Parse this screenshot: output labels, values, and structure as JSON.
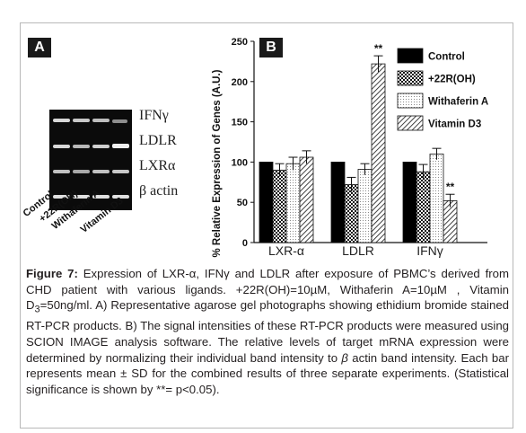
{
  "panel_a": {
    "label": "A",
    "genes": [
      "IFNγ",
      "LDLR",
      "LXRα",
      "β actin"
    ],
    "lanes": [
      "Control",
      "+22R(OH)",
      "Withaferin A",
      "Vitamin D3"
    ]
  },
  "panel_b": {
    "label": "B"
  },
  "colors": {
    "control": "#000000",
    "frame": "#b8b8b8",
    "panel_label_bg": "#1a1a1a"
  },
  "chart_data": {
    "type": "bar",
    "categories": [
      "LXR-α",
      "LDLR",
      "IFNγ"
    ],
    "ylabel": "% Relative Expression of Genes (A.U.)",
    "xlabel": "",
    "ylim": [
      0,
      250
    ],
    "yticks": [
      0,
      50,
      100,
      150,
      200,
      250
    ],
    "legend_position": "top-right",
    "series": [
      {
        "name": "Control",
        "pattern": "solid",
        "values": [
          100,
          100,
          100
        ],
        "errors": [
          0,
          0,
          0
        ]
      },
      {
        "name": "+22R(OH)",
        "pattern": "checker",
        "values": [
          90,
          72,
          88
        ],
        "errors": [
          8,
          9,
          9
        ]
      },
      {
        "name": "Withaferin A",
        "pattern": "dots",
        "values": [
          98,
          91,
          110
        ],
        "errors": [
          8,
          7,
          7
        ]
      },
      {
        "name": "Vitamin D3",
        "pattern": "diagonal",
        "values": [
          106,
          222,
          52
        ],
        "errors": [
          8,
          10,
          8
        ]
      }
    ],
    "annotations": [
      {
        "category": "LDLR",
        "series": "Vitamin D3",
        "text": "**"
      },
      {
        "category": "IFNγ",
        "series": "Vitamin D3",
        "text": "**"
      }
    ]
  },
  "caption": {
    "label": "Figure 7:",
    "line1": " Expression of LXR-α, IFNγ and LDLR after exposure of PBMC’s derived from CHD patient with various ligands. +22R(OH)=10µM, Withaferin A=10µM , Vitamin D",
    "subscript": "3",
    "line2": "=50ng/ml. A) Representative agarose gel photographs showing ethidium bromide stained RT-PCR products. B) The signal intensities of these RT-PCR products were measured using SCION IMAGE analysis software. The relative levels of target mRNA expression were determined by normalizing their individual band intensity to ",
    "beta": "β",
    "line3": " actin band intensity. Each bar represents mean ± SD for the combined results of three separate experiments. (Statistical significance is shown by **= p<0.05)."
  }
}
